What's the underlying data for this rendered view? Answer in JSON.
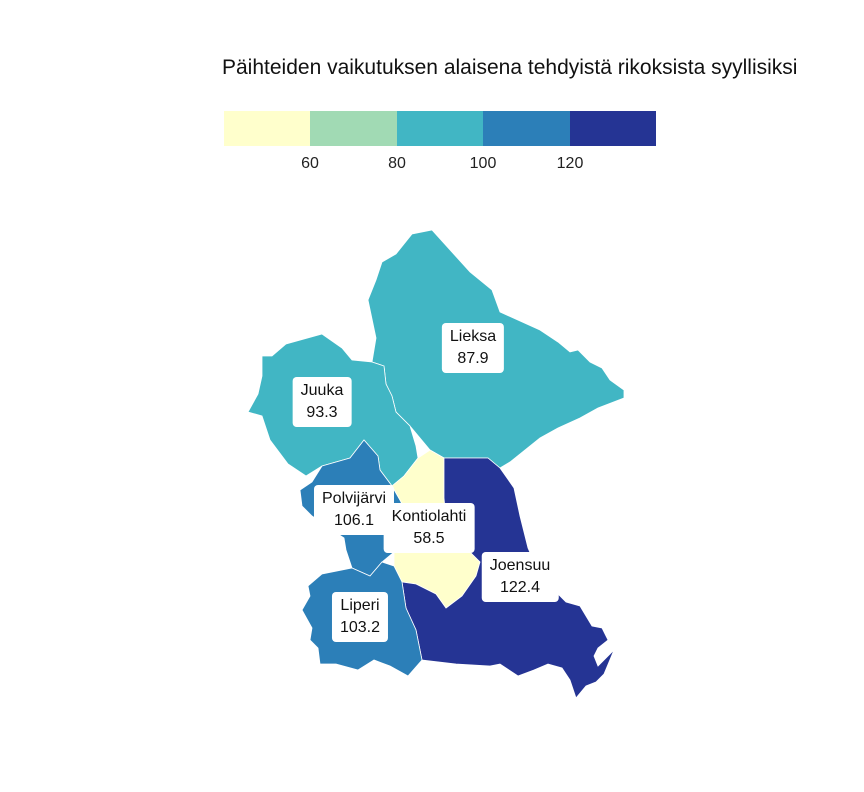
{
  "map": {
    "title": "Päihteiden vaikutuksen alaisena tehdyistä rikoksista syyllisiksi",
    "legend": {
      "colors": [
        "#ffffcc",
        "#a1dab4",
        "#41b6c4",
        "#2c7fb8",
        "#253494"
      ],
      "ticks": [
        "60",
        "80",
        "100",
        "120"
      ]
    },
    "regions": [
      {
        "name": "Lieksa",
        "value": "87.9",
        "color": "#41b6c4"
      },
      {
        "name": "Juuka",
        "value": "93.3",
        "color": "#41b6c4"
      },
      {
        "name": "Polvijärvi",
        "value": "106.1",
        "color": "#2c7fb8"
      },
      {
        "name": "Kontiolahti",
        "value": "58.5",
        "color": "#ffffcc"
      },
      {
        "name": "Joensuu",
        "value": "122.4",
        "color": "#253494"
      },
      {
        "name": "Liperi",
        "value": "103.2",
        "color": "#2c7fb8"
      }
    ]
  }
}
